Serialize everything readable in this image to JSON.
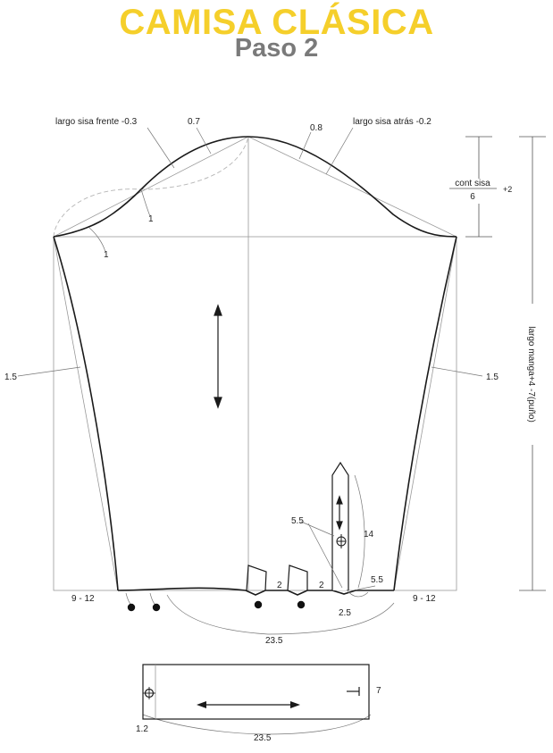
{
  "title": "CAMISA CLÁSICA",
  "subtitle": "Paso 2",
  "labels": {
    "largo_sisa_frente": "largo sisa frente -0.3",
    "largo_sisa_atras": "largo sisa atrás -0.2",
    "v_0_7": "0.7",
    "v_0_8": "0.8",
    "v_1_a": "1",
    "v_1_b": "1",
    "cont_sisa": "cont sisa",
    "six": "6",
    "plus2": "+2",
    "largo_manga": "largo manga+4 -7(puño)",
    "left_1_5": "1.5",
    "right_1_5": "1.5",
    "v_5_5_a": "5.5",
    "v_14": "14",
    "v_5_5_b": "5.5",
    "v_2_a": "2",
    "v_2_b": "2",
    "v_2_5": "2.5",
    "hem_left": "9 - 12",
    "hem_right": "9 - 12",
    "v_23_5": "23.5",
    "cuff_7": "7",
    "cuff_1_2": "1.2",
    "cuff_23_5": "23.5"
  },
  "colors": {
    "title": "#f5cf2b",
    "subtitle": "#7a7a7a",
    "line": "#222222",
    "guide": "#9a9a9a",
    "dashed": "#b5b5b5"
  }
}
